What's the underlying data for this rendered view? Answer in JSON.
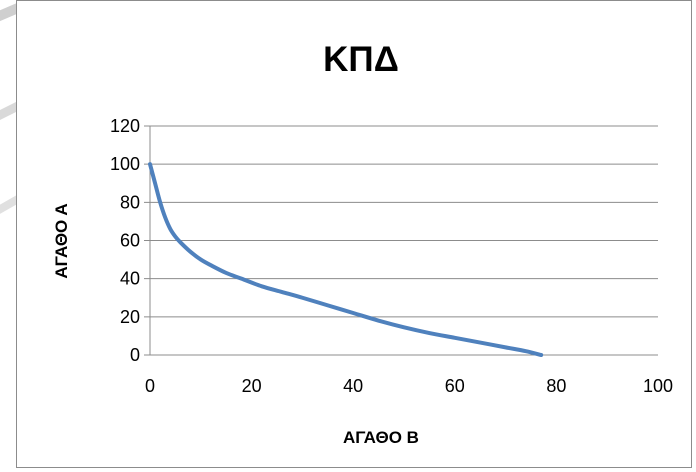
{
  "chart_data": {
    "type": "line",
    "title": "ΚΠΔ",
    "xlabel": "ΑΓΑΘΟ Β",
    "ylabel": "ΑΓΑΘΟ Α",
    "xlim": [
      0,
      100
    ],
    "ylim": [
      0,
      120
    ],
    "x_ticks": [
      "0",
      "20",
      "40",
      "60",
      "80",
      "100"
    ],
    "y_ticks": [
      "0",
      "20",
      "40",
      "60",
      "80",
      "100",
      "120"
    ],
    "grid": "horizontal",
    "legend": "none",
    "series": [
      {
        "color": "#4f81bd",
        "points": [
          [
            0,
            100
          ],
          [
            1,
            90
          ],
          [
            2,
            80
          ],
          [
            3,
            72
          ],
          [
            4,
            66
          ],
          [
            5,
            62
          ],
          [
            6,
            59
          ],
          [
            8,
            54
          ],
          [
            10,
            50
          ],
          [
            12,
            47
          ],
          [
            15,
            43
          ],
          [
            18,
            40
          ],
          [
            22,
            36
          ],
          [
            26,
            33
          ],
          [
            30,
            30
          ],
          [
            35,
            26
          ],
          [
            40,
            22
          ],
          [
            45,
            18
          ],
          [
            50,
            14.5
          ],
          [
            55,
            11.5
          ],
          [
            60,
            9
          ],
          [
            65,
            6.5
          ],
          [
            70,
            4
          ],
          [
            74,
            2
          ],
          [
            77,
            0
          ]
        ]
      }
    ]
  }
}
